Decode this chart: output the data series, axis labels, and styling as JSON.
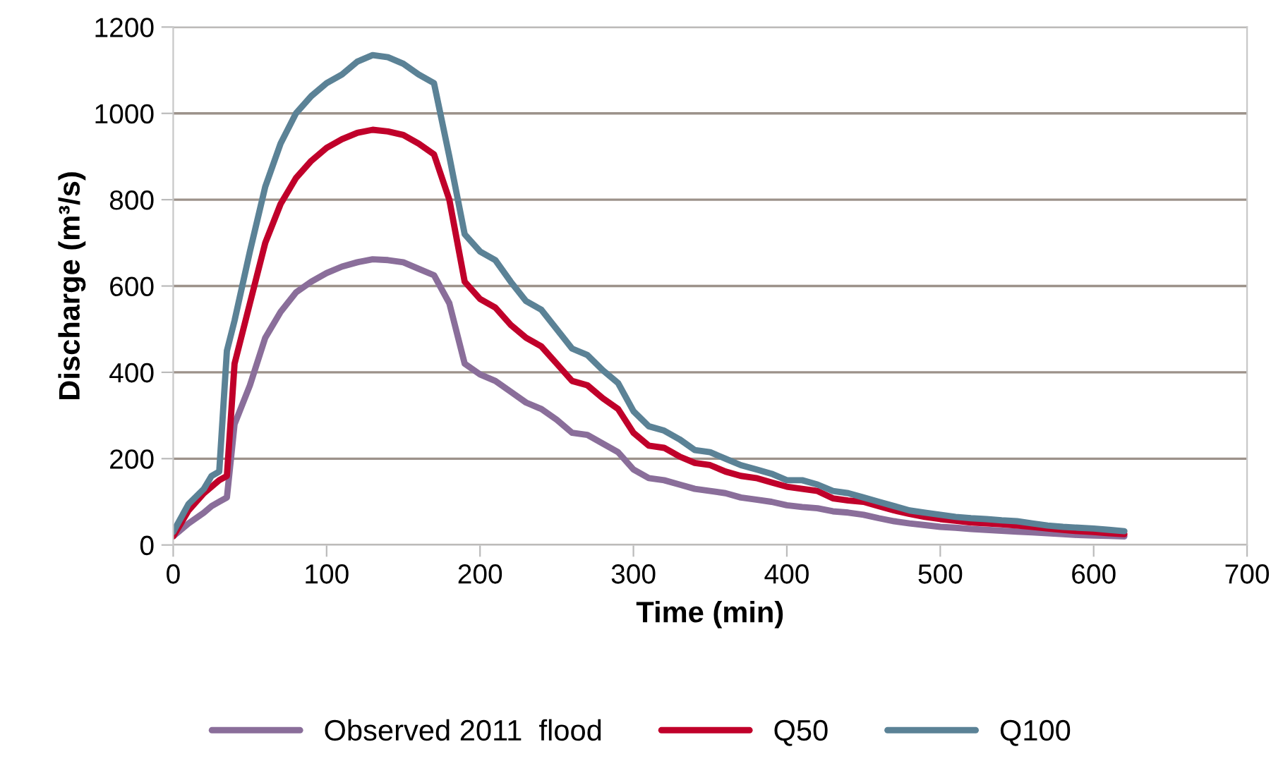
{
  "chart_data": {
    "type": "line",
    "xlabel": "Time (min)",
    "ylabel": "Discharge (m³/s)",
    "x": [
      0,
      10,
      20,
      25,
      30,
      35,
      40,
      50,
      60,
      70,
      80,
      90,
      100,
      110,
      120,
      130,
      140,
      150,
      160,
      170,
      180,
      190,
      200,
      210,
      220,
      230,
      240,
      250,
      260,
      270,
      280,
      290,
      300,
      310,
      320,
      330,
      340,
      350,
      360,
      370,
      380,
      390,
      400,
      410,
      420,
      430,
      440,
      450,
      460,
      470,
      480,
      490,
      500,
      510,
      520,
      530,
      540,
      550,
      560,
      570,
      580,
      590,
      600,
      610,
      620
    ],
    "series": [
      {
        "name": "Observed 2011  flood",
        "color": "#8a6e9a",
        "values": [
          20,
          50,
          75,
          90,
          100,
          110,
          280,
          370,
          480,
          540,
          585,
          610,
          630,
          645,
          655,
          662,
          660,
          655,
          640,
          625,
          560,
          420,
          395,
          380,
          355,
          330,
          315,
          290,
          260,
          255,
          235,
          215,
          175,
          155,
          150,
          140,
          130,
          125,
          120,
          110,
          105,
          100,
          92,
          88,
          85,
          78,
          75,
          70,
          62,
          55,
          50,
          46,
          42,
          40,
          37,
          35,
          33,
          31,
          29,
          27,
          25,
          23,
          22,
          21,
          20
        ]
      },
      {
        "name": "Q50",
        "color": "#c0002a",
        "values": [
          20,
          80,
          120,
          135,
          150,
          160,
          420,
          560,
          700,
          790,
          850,
          890,
          920,
          940,
          955,
          962,
          958,
          950,
          930,
          905,
          800,
          610,
          570,
          550,
          510,
          480,
          460,
          420,
          380,
          370,
          340,
          315,
          260,
          230,
          225,
          205,
          190,
          185,
          170,
          160,
          155,
          145,
          135,
          130,
          125,
          108,
          103,
          100,
          90,
          80,
          72,
          65,
          60,
          56,
          52,
          50,
          48,
          45,
          42,
          38,
          35,
          32,
          30,
          27,
          25
        ]
      },
      {
        "name": "Q100",
        "color": "#5b8296",
        "values": [
          30,
          95,
          130,
          160,
          170,
          450,
          520,
          680,
          830,
          930,
          1000,
          1040,
          1070,
          1090,
          1120,
          1135,
          1130,
          1115,
          1090,
          1070,
          900,
          720,
          680,
          660,
          610,
          565,
          545,
          500,
          455,
          440,
          405,
          375,
          310,
          275,
          265,
          245,
          220,
          215,
          200,
          185,
          175,
          165,
          150,
          150,
          140,
          125,
          120,
          110,
          100,
          90,
          80,
          75,
          70,
          65,
          62,
          60,
          57,
          55,
          50,
          45,
          42,
          40,
          38,
          35,
          32
        ]
      }
    ],
    "xlim": [
      0,
      700
    ],
    "xticks": [
      0,
      100,
      200,
      300,
      400,
      500,
      600,
      700
    ],
    "ylim": [
      0,
      1200
    ],
    "yticks": [
      0,
      200,
      400,
      600,
      800,
      1000,
      1200
    ],
    "grid": "y",
    "legend": "bottom",
    "marker": "none",
    "line_style": "solid"
  }
}
